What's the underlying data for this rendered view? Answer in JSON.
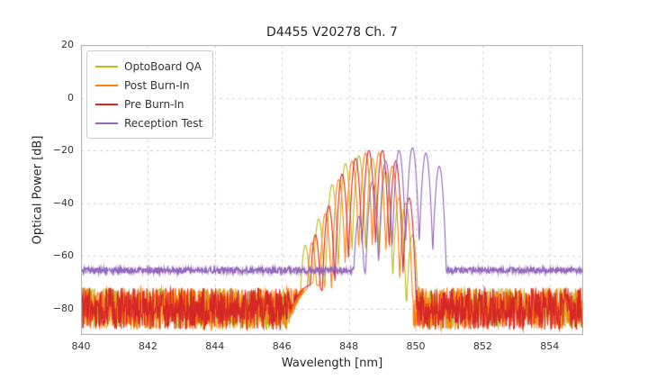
{
  "chart_data": {
    "type": "line",
    "title": "D4455 V20278 Ch. 7",
    "xlabel": "Wavelength [nm]",
    "ylabel": "Optical Power [dB]",
    "xlim": [
      840,
      855
    ],
    "ylim": [
      -90,
      20
    ],
    "xticks": [
      840,
      842,
      844,
      846,
      848,
      850,
      852,
      854
    ],
    "yticks": [
      20,
      0,
      -20,
      -40,
      -60,
      -80
    ],
    "grid": true,
    "grid_color": "#cccccc",
    "frame_color": "#b0b0b0",
    "background": "#ffffff",
    "legend_position": "upper left",
    "sample_step_nm": 0.01,
    "mode_width_nm": 0.2,
    "mode_rolloff_db": 35,
    "pedestal_rolloff_db": 15,
    "series": [
      {
        "name": "OptoBoard QA",
        "color": "#bcbd22",
        "noise_floor_db": -80,
        "noise_amp_db": 8,
        "pedestal": {
          "center": 847.0,
          "sigma": 0.8,
          "peak_db": -70
        },
        "modes": [
          [
            846.7,
            -56
          ],
          [
            847.1,
            -46
          ],
          [
            847.5,
            -33
          ],
          [
            847.9,
            -25
          ],
          [
            848.3,
            -22
          ],
          [
            848.7,
            -23
          ],
          [
            849.1,
            -28
          ],
          [
            849.5,
            -38
          ],
          [
            849.9,
            -52
          ]
        ]
      },
      {
        "name": "Post Burn-In",
        "color": "#ff7f0e",
        "noise_floor_db": -80,
        "noise_amp_db": 8,
        "pedestal": {
          "center": 847.0,
          "sigma": 0.8,
          "peak_db": -71
        },
        "modes": [
          [
            846.9,
            -55
          ],
          [
            847.3,
            -44
          ],
          [
            847.7,
            -31
          ],
          [
            848.1,
            -24
          ],
          [
            848.5,
            -21
          ],
          [
            848.9,
            -21
          ],
          [
            849.3,
            -26
          ],
          [
            849.7,
            -40
          ]
        ]
      },
      {
        "name": "Pre Burn-In",
        "color": "#d62728",
        "noise_floor_db": -80,
        "noise_amp_db": 8,
        "pedestal": {
          "center": 846.9,
          "sigma": 0.8,
          "peak_db": -71
        },
        "modes": [
          [
            847.0,
            -52
          ],
          [
            847.4,
            -41
          ],
          [
            847.8,
            -29
          ],
          [
            848.2,
            -23
          ],
          [
            848.6,
            -20
          ],
          [
            849.0,
            -20
          ],
          [
            849.4,
            -24
          ],
          [
            849.8,
            -38
          ]
        ]
      },
      {
        "name": "Reception Test",
        "color": "#9467bd",
        "noise_floor_db": -65.5,
        "noise_amp_db": 1.2,
        "pedestal": {
          "center": 849.4,
          "sigma": 1.0,
          "peak_db": -58
        },
        "modes": [
          [
            848.3,
            -45
          ],
          [
            848.7,
            -32
          ],
          [
            849.1,
            -24
          ],
          [
            849.5,
            -20
          ],
          [
            849.9,
            -19
          ],
          [
            850.3,
            -21
          ],
          [
            850.7,
            -26
          ]
        ]
      }
    ]
  }
}
